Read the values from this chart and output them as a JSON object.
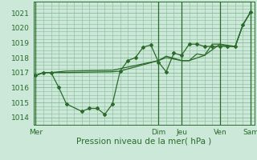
{
  "xlabel": "Pression niveau de la mer( hPa )",
  "bg_color": "#cce8d8",
  "grid_color": "#88bb99",
  "line_color": "#2a6b2a",
  "ylim": [
    1013.6,
    1021.4
  ],
  "yticks": [
    1014,
    1015,
    1016,
    1017,
    1018,
    1019,
    1020,
    1021
  ],
  "day_labels": [
    "Mer",
    "Dim",
    "Jeu",
    "Ven",
    "Sam"
  ],
  "day_positions": [
    0,
    16,
    19,
    24,
    28
  ],
  "vline_positions": [
    0,
    16,
    19,
    24,
    28
  ],
  "xlim": [
    -0.3,
    28.5
  ],
  "font_color": "#2a6b2a",
  "tick_labelsize": 6.5,
  "xlabel_fontsize": 7.5,
  "series1_x": [
    0,
    1,
    2,
    3,
    4,
    6,
    7,
    8,
    9,
    10,
    11,
    12,
    13,
    14,
    15,
    16,
    17,
    18,
    19,
    20,
    21,
    22,
    23,
    24,
    25,
    26,
    27,
    28
  ],
  "series1_y": [
    1016.8,
    1017.0,
    1017.0,
    1016.0,
    1014.9,
    1014.4,
    1014.6,
    1014.6,
    1014.2,
    1014.9,
    1017.1,
    1017.8,
    1018.0,
    1018.7,
    1018.85,
    1017.7,
    1017.05,
    1018.3,
    1018.15,
    1018.9,
    1018.9,
    1018.75,
    1018.75,
    1018.75,
    1018.75,
    1018.75,
    1020.2,
    1021.05
  ],
  "series2_x": [
    0,
    1,
    2,
    3,
    4,
    10,
    11,
    16,
    17,
    19,
    20,
    21,
    22,
    23,
    24,
    25,
    26,
    27,
    28
  ],
  "series2_y": [
    1016.8,
    1017.0,
    1017.0,
    1017.0,
    1017.0,
    1017.05,
    1017.1,
    1017.8,
    1018.0,
    1017.8,
    1017.8,
    1018.25,
    1018.15,
    1018.9,
    1018.9,
    1018.75,
    1018.75,
    1020.2,
    1021.05
  ],
  "series3_x": [
    0,
    1,
    2,
    3,
    4,
    10,
    16,
    17,
    19,
    20,
    22,
    24,
    26,
    27,
    28
  ],
  "series3_y": [
    1016.8,
    1017.0,
    1017.0,
    1017.05,
    1017.1,
    1017.15,
    1017.8,
    1018.1,
    1017.8,
    1017.8,
    1018.15,
    1018.9,
    1018.75,
    1020.2,
    1021.05
  ]
}
